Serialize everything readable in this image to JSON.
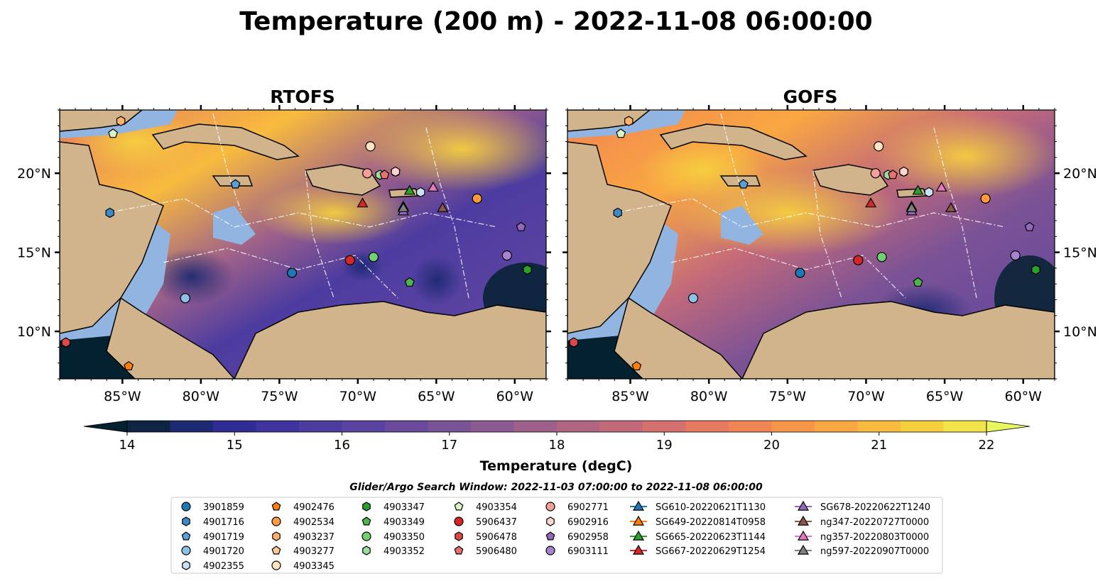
{
  "title": "Temperature (200 m) - 2022-11-08 06:00:00",
  "panels": [
    {
      "title": "RTOFS"
    },
    {
      "title": "GOFS"
    }
  ],
  "map": {
    "lon_range": [
      -89,
      -58
    ],
    "lat_range": [
      7,
      24
    ],
    "lon_ticks": [
      "85°W",
      "80°W",
      "75°W",
      "70°W",
      "65°W",
      "60°W"
    ],
    "lon_tick_values": [
      -85,
      -80,
      -75,
      -70,
      -65,
      -60
    ],
    "lat_ticks": [
      "20°N",
      "15°N",
      "10°N"
    ],
    "lat_tick_values": [
      20,
      15,
      10
    ],
    "colors": {
      "land": "#d2b48c",
      "shelf": "#92b4e0",
      "coast": "#000000"
    }
  },
  "colorbar": {
    "label": "Temperature (degC)",
    "ticks": [
      "14",
      "15",
      "16",
      "17",
      "18",
      "19",
      "20",
      "21",
      "22"
    ],
    "tick_values": [
      14,
      15,
      16,
      17,
      18,
      19,
      20,
      21,
      22
    ],
    "min": 14,
    "max": 22,
    "colors": [
      "#04212f",
      "#0d2443",
      "#1d2a73",
      "#302d92",
      "#3f349c",
      "#4d3ca0",
      "#5a43a0",
      "#694a9c",
      "#7a5296",
      "#8b5a90",
      "#9d608a",
      "#b06683",
      "#c36a7a",
      "#d4706e",
      "#e57a60",
      "#f18553",
      "#f79548",
      "#f9a742",
      "#f8bb3e",
      "#f6cf3f",
      "#f2e349",
      "#e8f660"
    ]
  },
  "search_window": "Glider/Argo Search Window: 2022-11-03 07:00:00 to 2022-11-08 06:00:00",
  "legend": {
    "columns": [
      [
        {
          "label": "3901859",
          "marker": "circle",
          "color": "#1f77b4"
        },
        {
          "label": "4901716",
          "marker": "hexagon",
          "color": "#3d8ac5"
        },
        {
          "label": "4901719",
          "marker": "pentagon",
          "color": "#5a9fd6"
        },
        {
          "label": "4901720",
          "marker": "circle",
          "color": "#8fc1e6"
        },
        {
          "label": "4902355",
          "marker": "hexagon",
          "color": "#c9e2f5"
        }
      ],
      [
        {
          "label": "4902476",
          "marker": "pentagon",
          "color": "#ff7f0e"
        },
        {
          "label": "4902534",
          "marker": "circle",
          "color": "#ff9a3f"
        },
        {
          "label": "4903237",
          "marker": "hexagon",
          "color": "#ffb26b"
        },
        {
          "label": "4903277",
          "marker": "pentagon",
          "color": "#ffc994"
        },
        {
          "label": "4903345",
          "marker": "circle",
          "color": "#ffe3c2"
        }
      ],
      [
        {
          "label": "4903347",
          "marker": "hexagon",
          "color": "#2ca02c"
        },
        {
          "label": "4903349",
          "marker": "pentagon",
          "color": "#4cb84c"
        },
        {
          "label": "4903350",
          "marker": "circle",
          "color": "#72d072"
        },
        {
          "label": "4903352",
          "marker": "hexagon",
          "color": "#9ae09a"
        }
      ],
      [
        {
          "label": "4903354",
          "marker": "pentagon",
          "color": "#d8f5c8"
        },
        {
          "label": "5906437",
          "marker": "circle",
          "color": "#d62728"
        },
        {
          "label": "5906478",
          "marker": "hexagon",
          "color": "#e04848"
        },
        {
          "label": "5906480",
          "marker": "pentagon",
          "color": "#eb7070"
        }
      ],
      [
        {
          "label": "6902771",
          "marker": "circle",
          "color": "#f4a09a"
        },
        {
          "label": "6902916",
          "marker": "hexagon",
          "color": "#fcd4d0"
        },
        {
          "label": "6902958",
          "marker": "pentagon",
          "color": "#9467bd"
        },
        {
          "label": "6903111",
          "marker": "circle",
          "color": "#a683cc"
        }
      ],
      [
        {
          "label": "SG610-20220621T1130",
          "marker": "triangle",
          "color": "#1f77b4"
        },
        {
          "label": "SG649-20220814T0958",
          "marker": "triangle",
          "color": "#ff7f0e"
        },
        {
          "label": "SG665-20220623T1144",
          "marker": "triangle",
          "color": "#2ca02c"
        },
        {
          "label": "SG667-20220629T1254",
          "marker": "triangle",
          "color": "#d62728"
        }
      ],
      [
        {
          "label": "SG678-20220622T1240",
          "marker": "triangle",
          "color": "#9467bd"
        },
        {
          "label": "ng347-20220727T0000",
          "marker": "triangle",
          "color": "#8c564b"
        },
        {
          "label": "ng357-20220803T0000",
          "marker": "triangle",
          "color": "#e377c2"
        },
        {
          "label": "ng597-20220907T0000",
          "marker": "triangle",
          "color": "#7f7f7f"
        }
      ]
    ]
  },
  "observations": [
    {
      "id": "3901859",
      "lon": -74.2,
      "lat": 13.7
    },
    {
      "id": "4901716",
      "lon": -85.8,
      "lat": 17.5
    },
    {
      "id": "4901719",
      "lon": -77.8,
      "lat": 19.3
    },
    {
      "id": "4901720",
      "lon": -81.0,
      "lat": 12.1
    },
    {
      "id": "4902355",
      "lon": -66.0,
      "lat": 18.8
    },
    {
      "id": "4902476",
      "lon": -84.6,
      "lat": 7.8
    },
    {
      "id": "4902534",
      "lon": -62.4,
      "lat": 18.4
    },
    {
      "id": "4903237",
      "lon": -85.1,
      "lat": 23.3
    },
    {
      "id": "4903277",
      "lon": -67.6,
      "lat": 20.1
    },
    {
      "id": "4903345",
      "lon": -69.2,
      "lat": 21.7
    },
    {
      "id": "4903347",
      "lon": -59.2,
      "lat": 13.9
    },
    {
      "id": "4903349",
      "lon": -66.7,
      "lat": 13.1
    },
    {
      "id": "4903350",
      "lon": -69.0,
      "lat": 14.7
    },
    {
      "id": "4903352",
      "lon": -68.6,
      "lat": 19.9
    },
    {
      "id": "4903354",
      "lon": -85.6,
      "lat": 22.5
    },
    {
      "id": "5906437",
      "lon": -70.5,
      "lat": 14.5
    },
    {
      "id": "5906478",
      "lon": -88.6,
      "lat": 9.3
    },
    {
      "id": "5906480",
      "lon": -68.3,
      "lat": 19.9
    },
    {
      "id": "6902771",
      "lon": -69.4,
      "lat": 20.0
    },
    {
      "id": "6902916",
      "lon": -67.6,
      "lat": 20.1
    },
    {
      "id": "6902958",
      "lon": -59.6,
      "lat": 16.6
    },
    {
      "id": "6903111",
      "lon": -60.5,
      "lat": 14.8
    },
    {
      "id": "SG610-20220621T1130",
      "lon": -67.1,
      "lat": 17.9
    },
    {
      "id": "SG665-20220623T1144",
      "lon": -66.7,
      "lat": 18.9
    },
    {
      "id": "SG667-20220629T1254",
      "lon": -69.7,
      "lat": 18.1
    },
    {
      "id": "SG678-20220622T1240",
      "lon": -67.1,
      "lat": 17.6
    },
    {
      "id": "ng347-20220727T0000",
      "lon": -64.6,
      "lat": 17.8
    },
    {
      "id": "ng357-20220803T0000",
      "lon": -65.2,
      "lat": 19.1
    },
    {
      "id": "ng597-20220907T0000",
      "lon": -67.1,
      "lat": 17.8
    }
  ]
}
